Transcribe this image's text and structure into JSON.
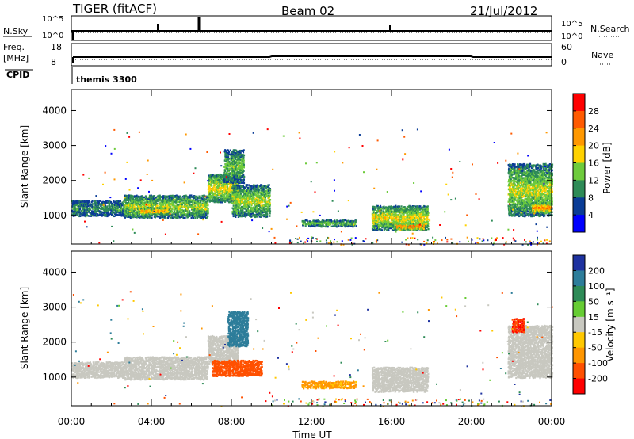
{
  "header": {
    "title": "TIGER (fitACF)",
    "beam": "Beam 02",
    "date": "21/Jul/2012"
  },
  "summary_panels": {
    "nsky": {
      "label": "N.Sky",
      "left_top": "10^5",
      "left_bottom": "10^0",
      "right_top": "10^5",
      "right_bottom": "10^0",
      "right_label": "N.Search"
    },
    "freq": {
      "label_line1": "Freq.",
      "label_line2": "[MHz]",
      "left_top": "18",
      "left_bottom": "8",
      "right_top": "60",
      "right_bottom": "0",
      "right_label": "Nave"
    },
    "cpid": {
      "label": "CPID",
      "value": "themis 3300"
    }
  },
  "chart_data": [
    {
      "type": "heatmap",
      "name": "power-panel",
      "ylabel": "Slant Range [km]",
      "ylim": [
        180,
        4600
      ],
      "yticks": [
        "1000",
        "2000",
        "3000",
        "4000"
      ],
      "xlim_hours": [
        0,
        24
      ],
      "colorbar": {
        "label": "Power [dB]",
        "ticks": [
          "28",
          "24",
          "20",
          "16",
          "12",
          "8",
          "4"
        ],
        "colors": [
          "#ff0000",
          "#ff5a00",
          "#ff9800",
          "#ffd200",
          "#6ecb3c",
          "#2e8b57",
          "#0a3c96",
          "#0000ff"
        ]
      },
      "echo_regions": [
        {
          "t": [
            0.0,
            2.6
          ],
          "r": [
            1000,
            1450
          ],
          "power": 8
        },
        {
          "t": [
            2.6,
            6.8
          ],
          "r": [
            950,
            1600
          ],
          "power": 12
        },
        {
          "t": [
            3.4,
            4.8
          ],
          "r": [
            1050,
            1250
          ],
          "power": 20
        },
        {
          "t": [
            6.8,
            8.3
          ],
          "r": [
            1400,
            2200
          ],
          "power": 14
        },
        {
          "t": [
            7.6,
            8.6
          ],
          "r": [
            1950,
            2900
          ],
          "power": 10
        },
        {
          "t": [
            8.0,
            9.9
          ],
          "r": [
            980,
            1900
          ],
          "power": 12
        },
        {
          "t": [
            11.5,
            14.2
          ],
          "r": [
            700,
            900
          ],
          "power": 12
        },
        {
          "t": [
            15.0,
            17.8
          ],
          "r": [
            600,
            1300
          ],
          "power": 14
        },
        {
          "t": [
            16.2,
            17.6
          ],
          "r": [
            620,
            800
          ],
          "power": 24
        },
        {
          "t": [
            21.8,
            24.0
          ],
          "r": [
            1000,
            2500
          ],
          "power": 12
        },
        {
          "t": [
            23.0,
            24.0
          ],
          "r": [
            1100,
            1400
          ],
          "power": 20
        }
      ]
    },
    {
      "type": "heatmap",
      "name": "velocity-panel",
      "ylabel": "Slant Range [km]",
      "ylim": [
        180,
        4600
      ],
      "yticks": [
        "1000",
        "2000",
        "3000",
        "4000"
      ],
      "xlim_hours": [
        0,
        24
      ],
      "xticks": [
        "00:00",
        "04:00",
        "08:00",
        "12:00",
        "16:00",
        "20:00",
        "00:00"
      ],
      "xlabel": "Time UT",
      "colorbar": {
        "label": "Velocity [m s⁻¹]",
        "ticks": [
          "200",
          "100",
          "50",
          "15",
          "-15",
          "-50",
          "-100",
          "-200"
        ],
        "colors": [
          "#1e32a0",
          "#2d7d9a",
          "#2e8b57",
          "#66cc33",
          "#c8c8c0",
          "#ffc800",
          "#ff9600",
          "#ff5000",
          "#ff0000"
        ]
      },
      "echo_regions": [
        {
          "t": [
            0.0,
            2.6
          ],
          "r": [
            1000,
            1450
          ],
          "velocity": 0
        },
        {
          "t": [
            2.6,
            6.8
          ],
          "r": [
            950,
            1600
          ],
          "velocity": 0
        },
        {
          "t": [
            6.8,
            8.3
          ],
          "r": [
            1400,
            2200
          ],
          "velocity": 0
        },
        {
          "t": [
            7.0,
            9.5
          ],
          "r": [
            1050,
            1500
          ],
          "velocity": -150
        },
        {
          "t": [
            7.8,
            8.8
          ],
          "r": [
            1900,
            2900
          ],
          "velocity": 150
        },
        {
          "t": [
            11.5,
            14.2
          ],
          "r": [
            700,
            900
          ],
          "velocity": -60
        },
        {
          "t": [
            15.0,
            17.8
          ],
          "r": [
            600,
            1300
          ],
          "velocity": 0
        },
        {
          "t": [
            21.8,
            24.0
          ],
          "r": [
            1000,
            2500
          ],
          "velocity": 0
        },
        {
          "t": [
            22.0,
            22.6
          ],
          "r": [
            2300,
            2700
          ],
          "velocity": -200
        }
      ]
    }
  ]
}
